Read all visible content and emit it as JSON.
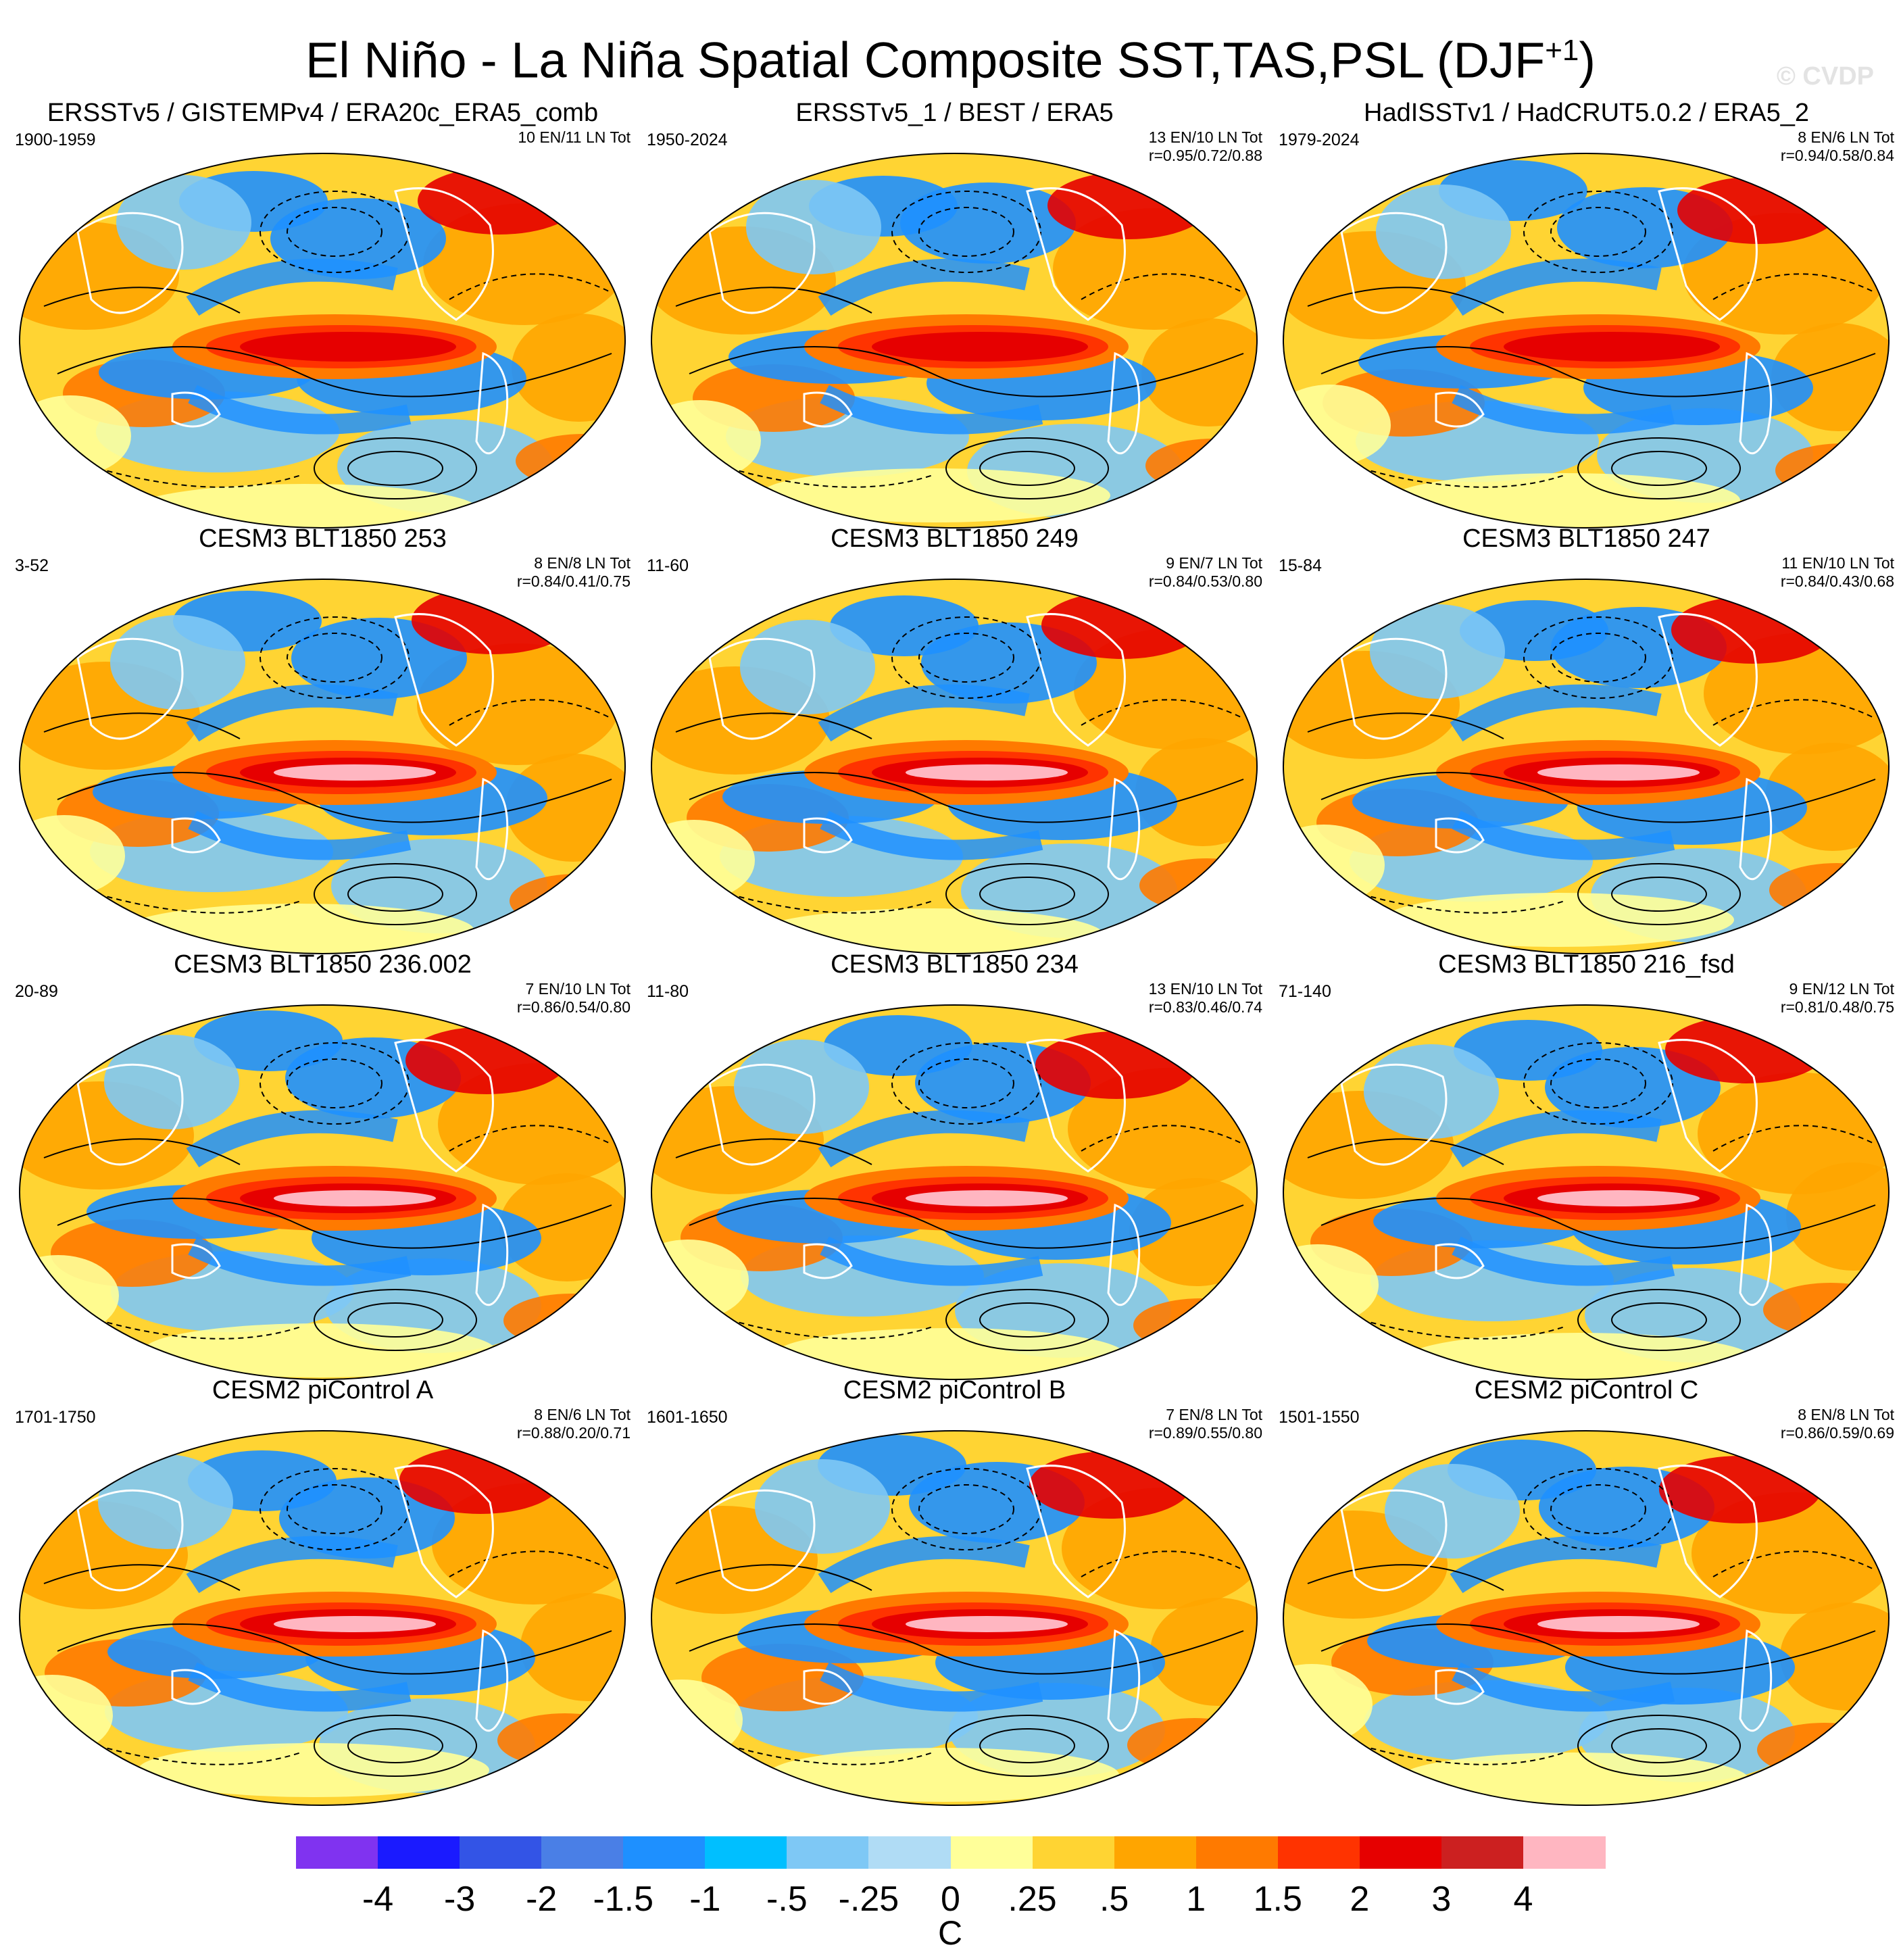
{
  "figure": {
    "title": "El Niño - La Niña Spatial Composite SST,TAS,PSL (DJF",
    "title_sup": "+1",
    "title_end": ")",
    "watermark": "© CVDP"
  },
  "panels": [
    {
      "title": "ERSSTv5 / GISTEMPv4 / ERA20c_ERA5_comb",
      "years": "1900-1959",
      "counts": "10 EN/11 LN Tot",
      "corr": ""
    },
    {
      "title": "ERSSTv5_1 / BEST / ERA5",
      "years": "1950-2024",
      "counts": "13 EN/10 LN Tot",
      "corr": "r=0.95/0.72/0.88"
    },
    {
      "title": "HadISSTv1 / HadCRUT5.0.2 / ERA5_2",
      "years": "1979-2024",
      "counts": "8 EN/6 LN Tot",
      "corr": "r=0.94/0.58/0.84"
    },
    {
      "title": "CESM3 BLT1850 253",
      "years": "3-52",
      "counts": "8 EN/8 LN Tot",
      "corr": "r=0.84/0.41/0.75"
    },
    {
      "title": "CESM3 BLT1850 249",
      "years": "11-60",
      "counts": "9 EN/7 LN Tot",
      "corr": "r=0.84/0.53/0.80"
    },
    {
      "title": "CESM3 BLT1850 247",
      "years": "15-84",
      "counts": "11 EN/10 LN Tot",
      "corr": "r=0.84/0.43/0.68"
    },
    {
      "title": "CESM3 BLT1850 236.002",
      "years": "20-89",
      "counts": "7 EN/10 LN Tot",
      "corr": "r=0.86/0.54/0.80"
    },
    {
      "title": "CESM3 BLT1850 234",
      "years": "11-80",
      "counts": "13 EN/10 LN Tot",
      "corr": "r=0.83/0.46/0.74"
    },
    {
      "title": "CESM3 BLT1850 216_fsd",
      "years": "71-140",
      "counts": "9 EN/12 LN Tot",
      "corr": "r=0.81/0.48/0.75"
    },
    {
      "title": "CESM2 piControl A",
      "years": "1701-1750",
      "counts": "8 EN/6 LN Tot",
      "corr": "r=0.88/0.20/0.71"
    },
    {
      "title": "CESM2 piControl B",
      "years": "1601-1650",
      "counts": "7 EN/8 LN Tot",
      "corr": "r=0.89/0.55/0.80"
    },
    {
      "title": "CESM2 piControl C",
      "years": "1501-1550",
      "counts": "8 EN/8 LN Tot",
      "corr": "r=0.86/0.59/0.69"
    }
  ],
  "colorbar": {
    "units": "C",
    "ticks": [
      "-4",
      "-3",
      "-2",
      "-1.5",
      "-1",
      "-.5",
      "-.25",
      "0",
      ".25",
      ".5",
      "1",
      "1.5",
      "2",
      "3",
      "4"
    ],
    "colors": [
      "#8033f0",
      "#1a1aff",
      "#3354e6",
      "#4a7fe6",
      "#1e90ff",
      "#00bfff",
      "#7ec8f5",
      "#b0dcf5",
      "#ffff99",
      "#ffd433",
      "#ffa500",
      "#ff7a00",
      "#ff3300",
      "#e60000",
      "#cc2020",
      "#ffb6c1"
    ]
  },
  "map_palette": {
    "ocean_background": "#ffd433",
    "warm": "#ffa500",
    "warm2": "#ff7a00",
    "hot": "#ff3300",
    "hottest": "#e60000",
    "peak": "#ffb6c1",
    "neutral": "#ffff99",
    "cool": "#7ec8f5",
    "cool2": "#1e90ff",
    "cold": "#3354e6",
    "outline": "#000000",
    "coast": "#ffffff"
  }
}
